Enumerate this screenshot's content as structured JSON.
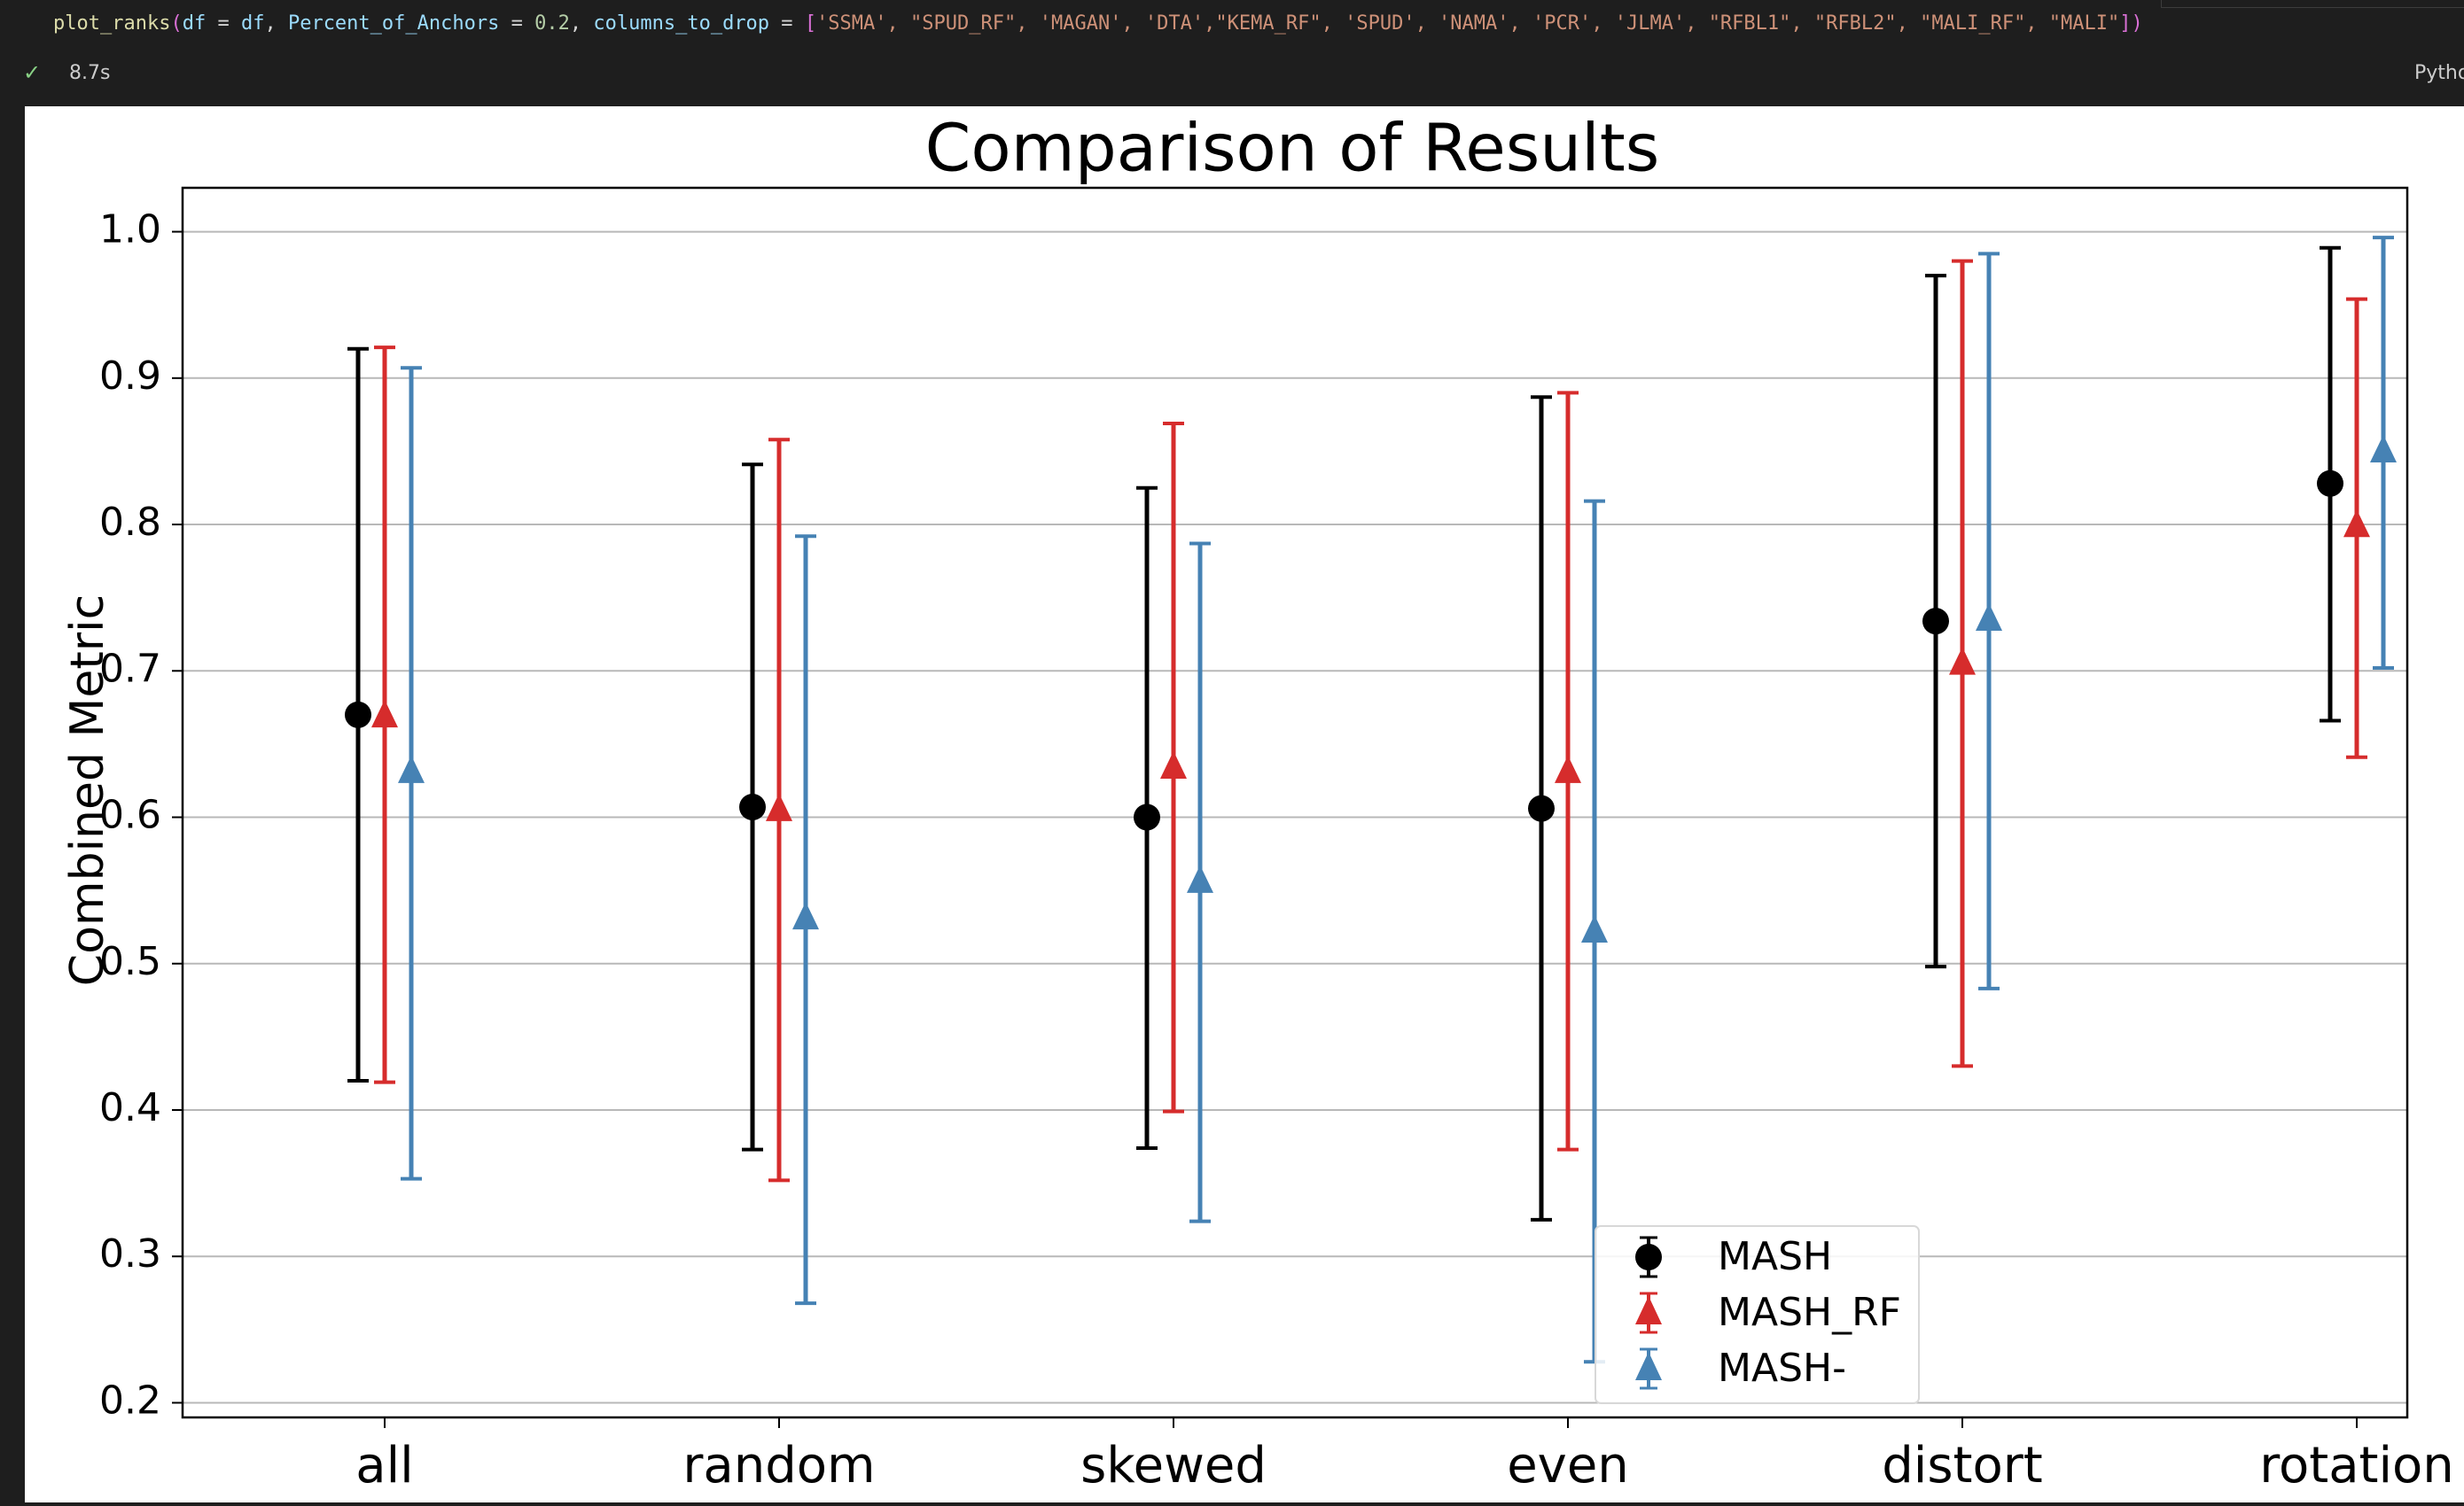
{
  "cell": {
    "code": {
      "fn": "plot_ranks",
      "open_paren": "(",
      "arg1_name": "df",
      "eq1": " = ",
      "arg1_value": "df",
      "sep1": ", ",
      "arg2_name": "Percent_of_Anchors",
      "eq2": " = ",
      "arg2_value": "0.2",
      "sep2": ", ",
      "arg3_name": "columns_to_drop",
      "eq3": " = ",
      "list_open": "[",
      "list_items": "'SSMA', \"SPUD_RF\", 'MAGAN', 'DTA',\"KEMA_RF\", 'SPUD', 'NAMA', 'PCR', 'JLMA', \"RFBL1\", \"RFBL2\", \"MALI_RF\", \"MALI\"",
      "list_close": "]",
      "close_paren": ")"
    },
    "status": {
      "check_icon": "✓",
      "exec_time": "8.7s",
      "language": "Python"
    }
  },
  "chart_data": {
    "type": "errorbar",
    "title": "Comparison of Results",
    "xlabel": "",
    "ylabel": "Combined Metric",
    "categories": [
      "all",
      "random",
      "skewed",
      "even",
      "distort",
      "rotation"
    ],
    "ylim": [
      0.19,
      1.03
    ],
    "yticks": [
      "0.2",
      "0.3",
      "0.4",
      "0.5",
      "0.6",
      "0.7",
      "0.8",
      "0.9",
      "1.0"
    ],
    "grid": "horizontal",
    "legend_position": "lower-center",
    "series": [
      {
        "name": "MASH",
        "color": "#000000",
        "marker": "circle",
        "values": [
          0.67,
          0.607,
          0.6,
          0.606,
          0.734,
          0.828
        ],
        "lower": [
          0.42,
          0.373,
          0.374,
          0.325,
          0.498,
          0.666
        ],
        "upper": [
          0.92,
          0.841,
          0.825,
          0.887,
          0.97,
          0.989
        ]
      },
      {
        "name": "MASH_RF",
        "color": "#d62c2c",
        "marker": "triangle",
        "values": [
          0.669,
          0.605,
          0.634,
          0.631,
          0.705,
          0.799
        ],
        "lower": [
          0.419,
          0.352,
          0.399,
          0.373,
          0.43,
          0.641
        ],
        "upper": [
          0.921,
          0.858,
          0.869,
          0.89,
          0.98,
          0.954
        ]
      },
      {
        "name": "MASH-",
        "color": "#4682b4",
        "marker": "triangle",
        "values": [
          0.631,
          0.531,
          0.556,
          0.522,
          0.735,
          0.85
        ],
        "lower": [
          0.353,
          0.268,
          0.324,
          0.228,
          0.483,
          0.702
        ],
        "upper": [
          0.907,
          0.792,
          0.787,
          0.816,
          0.985,
          0.996
        ]
      }
    ]
  }
}
